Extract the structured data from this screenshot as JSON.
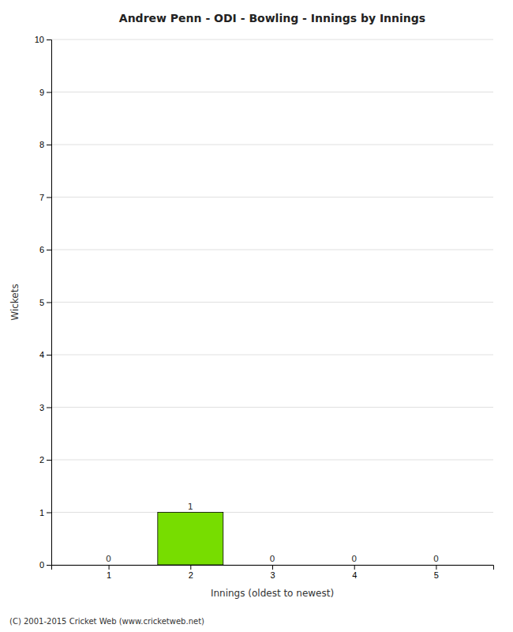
{
  "chart_data": {
    "type": "bar",
    "title": "Andrew Penn - ODI - Bowling - Innings by Innings",
    "xlabel": "Innings (oldest to newest)",
    "ylabel": "Wickets",
    "categories": [
      1,
      2,
      3,
      4,
      5
    ],
    "values": [
      0,
      1,
      0,
      0,
      0
    ],
    "color": "#77dd00",
    "xlim": [
      0.3,
      5.7
    ],
    "xticks": [
      1,
      2,
      3,
      4,
      5
    ],
    "ylim": [
      0,
      10
    ],
    "yticks": [
      0,
      1,
      2,
      3,
      4,
      5,
      6,
      7,
      8,
      9,
      10
    ],
    "grid": true,
    "data_labels": true,
    "annotations": [
      "(C) 2001-2015 Cricket Web (www.cricketweb.net)"
    ]
  }
}
